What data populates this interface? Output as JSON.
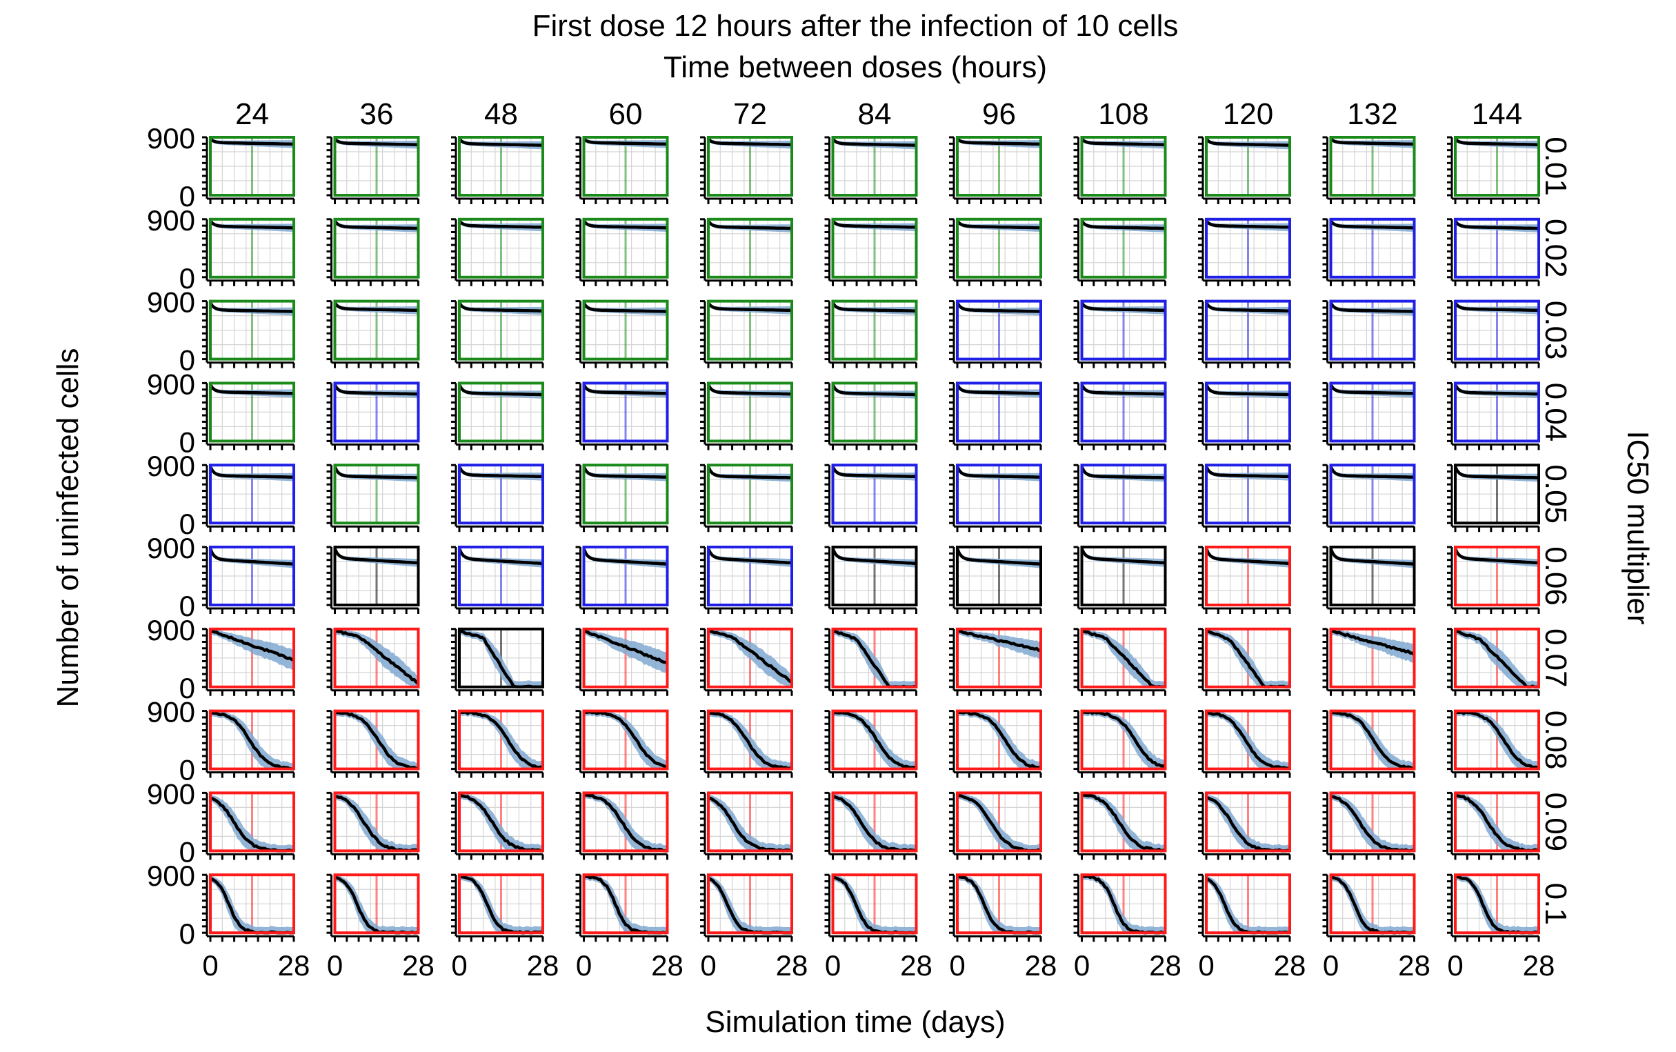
{
  "chart_data": {
    "type": "line",
    "title": "First dose 12 hours after the infection of 10 cells",
    "column_axis_label": "Time between doses (hours)",
    "row_axis_label": "IC50 multiplier",
    "xlabel": "Simulation time (days)",
    "ylabel": "Number of uninfected cells",
    "x_ticks": [
      "0",
      "28"
    ],
    "y_ticks": [
      "0",
      "900"
    ],
    "xlim": [
      0,
      28
    ],
    "ylim": [
      0,
      900
    ],
    "grid": true,
    "dose_interval_hours": [
      "24",
      "36",
      "48",
      "60",
      "72",
      "84",
      "96",
      "108",
      "120",
      "132",
      "144"
    ],
    "ic50_multipliers": [
      "0.01",
      "0.02",
      "0.03",
      "0.04",
      "0.05",
      "0.06",
      "0.07",
      "0.08",
      "0.09",
      "0.1"
    ],
    "panel_outline_colors": {
      "G": "#1a8a1a",
      "B": "#1f1fe6",
      "K": "#000000",
      "R": "#ff1a1a"
    },
    "panel_outcome_grid": [
      "GGGGGGGGGGG",
      "GGGGGGGGBBB",
      "GGGGGGBBBBB",
      "GBGBGGBBBBB",
      "BGBGGBBBBBK",
      "BKBBBKKKRKR",
      "RRKRRRRRRRR",
      "RRRRRRRRRRR",
      "RRRRRRRRRRR",
      "RRRRRRRRRRR"
    ],
    "median_line_color": "#000000",
    "band_color": "#7fa8d1",
    "series_note": "median uninfected-cell count (black) with spread band (blue); day 0 to 28"
  }
}
